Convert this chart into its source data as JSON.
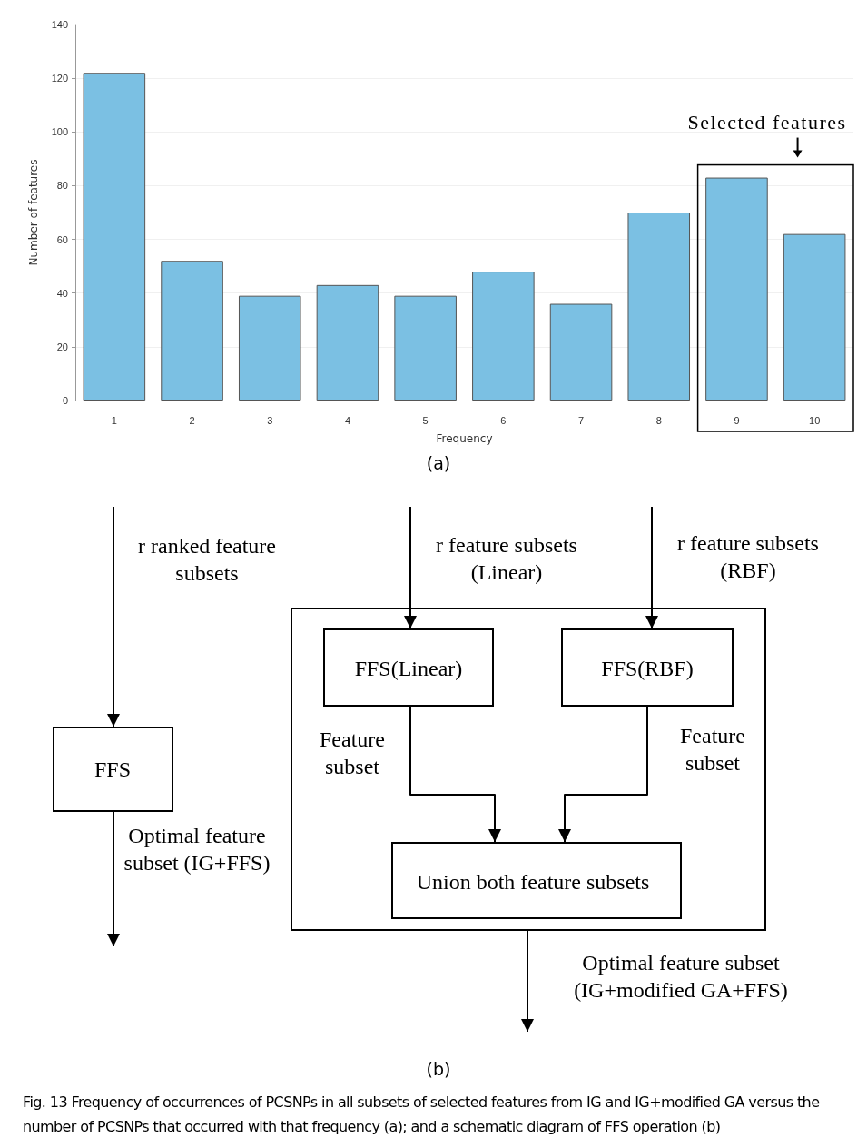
{
  "chart_data": [
    {
      "type": "bar",
      "categories": [
        "1",
        "2",
        "3",
        "4",
        "5",
        "6",
        "7",
        "8",
        "9",
        "10"
      ],
      "values": [
        122,
        52,
        39,
        43,
        39,
        48,
        36,
        70,
        83,
        62
      ],
      "color": "#7bc0e3",
      "ylim": [
        0,
        140
      ],
      "yticks": [
        0,
        20,
        40,
        60,
        80,
        100,
        120,
        140
      ],
      "grid": "y",
      "xlabel": "Frequency",
      "ylabel": "Number of features",
      "annotations": [
        "Selected features",
        "(a)"
      ]
    },
    {
      "type": "other",
      "annotations": [
        "r ranked feature subsets",
        "r feature subsets (Linear)",
        "r feature subsets (RBF)",
        "FFS(Linear)",
        "FFS(RBF)",
        "Feature subset",
        "FFS",
        "Feature subset",
        "Optimal feature subset (IG+FFS)",
        "Union both feature subsets",
        "Optimal feature subset (IG+modified GA+FFS)",
        "(b)",
        "Fig. 13 Frequency of occurrences of PCSNPs in all subsets of selected features from IG and IG+modified GA versus the number of PCSNPs that occurred with that frequency (a); and a schematic diagram of FFS operation (b)"
      ]
    }
  ]
}
